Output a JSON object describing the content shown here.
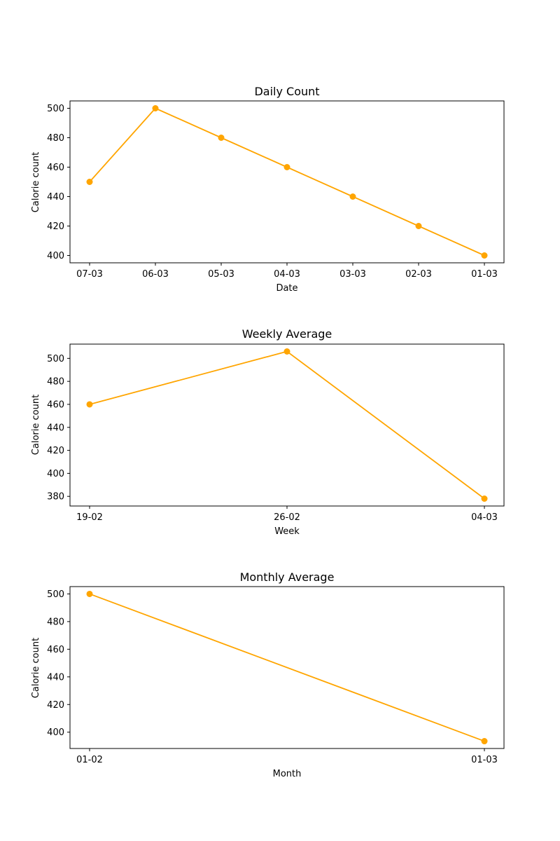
{
  "chart_data": [
    {
      "type": "line",
      "title": "Daily Count",
      "xlabel": "Date",
      "ylabel": "Calorie count",
      "categories": [
        "07-03",
        "06-03",
        "05-03",
        "04-03",
        "03-03",
        "02-03",
        "01-03"
      ],
      "values": [
        450,
        500,
        480,
        460,
        440,
        420,
        400
      ],
      "ylim": [
        395,
        505
      ],
      "yticks": [
        400,
        420,
        440,
        460,
        480,
        500
      ],
      "grid": false,
      "color": "#FFA500"
    },
    {
      "type": "line",
      "title": "Weekly Average",
      "xlabel": "Week",
      "ylabel": "Calorie count",
      "categories": [
        "19-02",
        "26-02",
        "04-03"
      ],
      "values": [
        460,
        506,
        378
      ],
      "ylim": [
        371.6,
        512.4
      ],
      "yticks": [
        380,
        400,
        420,
        440,
        460,
        480,
        500
      ],
      "grid": false,
      "color": "#FFA500"
    },
    {
      "type": "line",
      "title": "Monthly Average",
      "xlabel": "Month",
      "ylabel": "Calorie count",
      "categories": [
        "01-02",
        "01-03"
      ],
      "values": [
        500,
        393.5
      ],
      "ylim": [
        388.2,
        505.3
      ],
      "yticks": [
        400,
        420,
        440,
        460,
        480,
        500
      ],
      "grid": false,
      "color": "#FFA500"
    }
  ]
}
